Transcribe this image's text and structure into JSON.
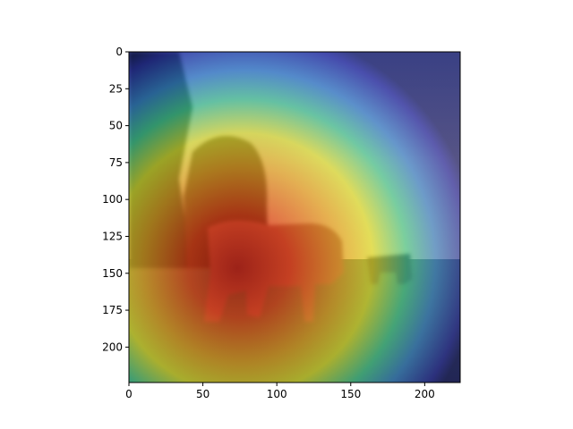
{
  "chart_data": {
    "type": "heatmap",
    "description_layers": [
      "photograph of cows in a pasture",
      "jet-colormap attention heatmap overlay"
    ],
    "title": "",
    "xlabel": "",
    "ylabel": "",
    "xlim": [
      0,
      224
    ],
    "ylim": [
      224,
      0
    ],
    "x_ticks": [
      0,
      50,
      100,
      150,
      200
    ],
    "y_ticks": [
      0,
      25,
      50,
      75,
      100,
      125,
      150,
      175,
      200
    ],
    "colormap": "jet",
    "grid": false,
    "heat_peak": {
      "x": 75,
      "y": 125
    },
    "colors": {
      "axes": "#000000",
      "background": "#ffffff"
    }
  }
}
